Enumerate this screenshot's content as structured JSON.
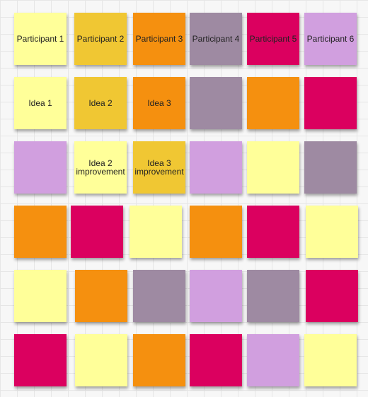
{
  "colors": {
    "light-yellow": "#ffff99",
    "yellow": "#f0c733",
    "orange": "#f5900f",
    "gray-purple": "#9e8aa2",
    "magenta": "#db005f",
    "lilac": "#d19fdf"
  },
  "notes": [
    {
      "text": "Participant 1",
      "color": "light-yellow"
    },
    {
      "text": "Participant 2",
      "color": "yellow"
    },
    {
      "text": "Participant 3",
      "color": "orange"
    },
    {
      "text": "Participant 4",
      "color": "gray-purple"
    },
    {
      "text": "Participant 5",
      "color": "magenta"
    },
    {
      "text": "Participant 6",
      "color": "lilac"
    },
    {
      "text": "Idea 1",
      "color": "light-yellow"
    },
    {
      "text": "Idea 2",
      "color": "yellow"
    },
    {
      "text": "Idea 3",
      "color": "orange"
    },
    {
      "text": "",
      "color": "gray-purple"
    },
    {
      "text": "",
      "color": "orange"
    },
    {
      "text": "",
      "color": "magenta"
    },
    {
      "text": "",
      "color": "lilac"
    },
    {
      "text": "Idea 2\nimprovement",
      "color": "light-yellow"
    },
    {
      "text": "Idea 3\nimprovement",
      "color": "yellow"
    },
    {
      "text": "",
      "color": "lilac"
    },
    {
      "text": "",
      "color": "light-yellow"
    },
    {
      "text": "",
      "color": "gray-purple"
    },
    {
      "text": "",
      "color": "orange"
    },
    {
      "text": "",
      "color": "magenta"
    },
    {
      "text": "",
      "color": "light-yellow"
    },
    {
      "text": "",
      "color": "orange"
    },
    {
      "text": "",
      "color": "magenta"
    },
    {
      "text": "",
      "color": "light-yellow"
    },
    {
      "text": "",
      "color": "light-yellow"
    },
    {
      "text": "",
      "color": "orange"
    },
    {
      "text": "",
      "color": "gray-purple"
    },
    {
      "text": "",
      "color": "lilac"
    },
    {
      "text": "",
      "color": "gray-purple"
    },
    {
      "text": "",
      "color": "magenta"
    },
    {
      "text": "",
      "color": "magenta"
    },
    {
      "text": "",
      "color": "light-yellow"
    },
    {
      "text": "",
      "color": "orange"
    },
    {
      "text": "",
      "color": "magenta"
    },
    {
      "text": "",
      "color": "lilac"
    },
    {
      "text": "",
      "color": "light-yellow"
    }
  ]
}
